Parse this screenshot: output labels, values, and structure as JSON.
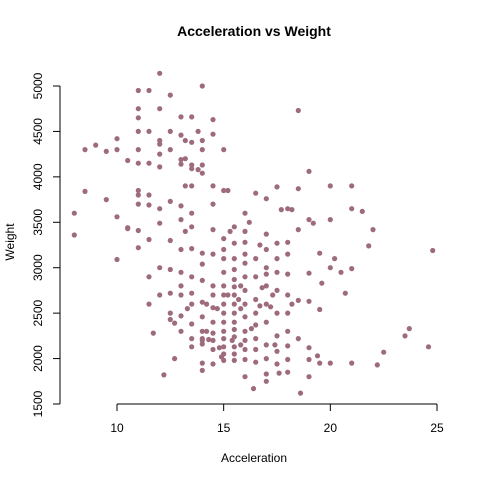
{
  "chart_data": {
    "type": "scatter",
    "title": "Acceleration vs Weight",
    "xlabel": "Acceleration",
    "ylabel": "Weight",
    "xlim": [
      8,
      25
    ],
    "ylim": [
      1500,
      5150
    ],
    "xticks": [
      10,
      15,
      20,
      25
    ],
    "yticks": [
      1500,
      2000,
      2500,
      3000,
      3500,
      4000,
      4500,
      5000
    ],
    "tick_labels_x": [
      "10",
      "15",
      "20",
      "25"
    ],
    "tick_labels_y": [
      "1500",
      "2000",
      "2500",
      "3000",
      "3500",
      "4000",
      "4500",
      "5000"
    ],
    "grid": false,
    "point_color": "#9E6B7E",
    "points": [
      [
        8.0,
        3600
      ],
      [
        8.0,
        3360
      ],
      [
        8.5,
        3840
      ],
      [
        8.5,
        4300
      ],
      [
        9.0,
        4350
      ],
      [
        9.5,
        4280
      ],
      [
        9.5,
        3750
      ],
      [
        10.0,
        4420
      ],
      [
        10.0,
        4300
      ],
      [
        10.0,
        3560
      ],
      [
        10.0,
        3090
      ],
      [
        10.5,
        4180
      ],
      [
        10.5,
        3440
      ],
      [
        10.5,
        3430
      ],
      [
        11.0,
        4950
      ],
      [
        11.0,
        4750
      ],
      [
        11.0,
        4650
      ],
      [
        11.0,
        4500
      ],
      [
        11.0,
        4300
      ],
      [
        11.0,
        4150
      ],
      [
        11.0,
        3850
      ],
      [
        11.0,
        3800
      ],
      [
        11.0,
        3700
      ],
      [
        11.0,
        3410
      ],
      [
        11.0,
        3220
      ],
      [
        11.5,
        4950
      ],
      [
        11.5,
        4500
      ],
      [
        11.5,
        4150
      ],
      [
        11.5,
        3800
      ],
      [
        11.5,
        3690
      ],
      [
        11.5,
        2900
      ],
      [
        11.5,
        2600
      ],
      [
        11.5,
        3310
      ],
      [
        11.7,
        2280
      ],
      [
        12.0,
        5140
      ],
      [
        12.0,
        4750
      ],
      [
        12.0,
        4400
      ],
      [
        12.0,
        4360
      ],
      [
        12.0,
        4250
      ],
      [
        12.0,
        4110
      ],
      [
        12.0,
        3650
      ],
      [
        12.0,
        3490
      ],
      [
        12.0,
        3000
      ],
      [
        12.0,
        2700
      ],
      [
        12.2,
        1820
      ],
      [
        12.5,
        4900
      ],
      [
        12.5,
        4500
      ],
      [
        12.5,
        4300
      ],
      [
        12.5,
        3730
      ],
      [
        12.5,
        3300
      ],
      [
        12.5,
        2980
      ],
      [
        12.5,
        2720
      ],
      [
        12.5,
        2430
      ],
      [
        12.5,
        2500
      ],
      [
        12.7,
        2390
      ],
      [
        12.7,
        2000
      ],
      [
        13.0,
        4660
      ],
      [
        13.0,
        4460
      ],
      [
        13.0,
        4190
      ],
      [
        13.0,
        4140
      ],
      [
        13.0,
        3680
      ],
      [
        13.0,
        3530
      ],
      [
        13.0,
        3200
      ],
      [
        13.0,
        2950
      ],
      [
        13.0,
        2800
      ],
      [
        13.0,
        2700
      ],
      [
        13.0,
        2470
      ],
      [
        13.0,
        2300
      ],
      [
        13.2,
        4400
      ],
      [
        13.2,
        4200
      ],
      [
        13.2,
        3900
      ],
      [
        13.2,
        3400
      ],
      [
        13.3,
        2550
      ],
      [
        13.5,
        4660
      ],
      [
        13.5,
        4380
      ],
      [
        13.5,
        4130
      ],
      [
        13.5,
        4090
      ],
      [
        13.5,
        3900
      ],
      [
        13.5,
        3600
      ],
      [
        13.5,
        3450
      ],
      [
        13.5,
        3210
      ],
      [
        13.5,
        2900
      ],
      [
        13.5,
        2720
      ],
      [
        13.5,
        2600
      ],
      [
        13.5,
        2380
      ],
      [
        13.5,
        2220
      ],
      [
        13.5,
        2130
      ],
      [
        13.8,
        4500
      ],
      [
        13.8,
        4080
      ],
      [
        14.0,
        5000
      ],
      [
        14.0,
        4400
      ],
      [
        14.0,
        4300
      ],
      [
        14.0,
        4130
      ],
      [
        14.0,
        4040
      ],
      [
        14.0,
        3160
      ],
      [
        14.0,
        3040
      ],
      [
        14.0,
        2860
      ],
      [
        14.0,
        2620
      ],
      [
        14.0,
        2460
      ],
      [
        14.0,
        2300
      ],
      [
        14.0,
        2220
      ],
      [
        14.0,
        2200
      ],
      [
        14.0,
        2160
      ],
      [
        14.0,
        1950
      ],
      [
        14.0,
        1870
      ],
      [
        14.2,
        2600
      ],
      [
        14.2,
        2300
      ],
      [
        14.3,
        2210
      ],
      [
        14.5,
        4630
      ],
      [
        14.5,
        4470
      ],
      [
        14.5,
        3900
      ],
      [
        14.5,
        3700
      ],
      [
        14.5,
        3420
      ],
      [
        14.5,
        3150
      ],
      [
        14.5,
        2800
      ],
      [
        14.5,
        2700
      ],
      [
        14.5,
        2560
      ],
      [
        14.5,
        2400
      ],
      [
        14.5,
        2280
      ],
      [
        14.5,
        2200
      ],
      [
        14.5,
        2100
      ],
      [
        14.5,
        1940
      ],
      [
        14.7,
        2550
      ],
      [
        14.8,
        2120
      ],
      [
        14.9,
        2020
      ],
      [
        15.0,
        4300
      ],
      [
        15.0,
        3850
      ],
      [
        15.0,
        3320
      ],
      [
        15.0,
        3200
      ],
      [
        15.0,
        3100
      ],
      [
        15.0,
        2950
      ],
      [
        15.0,
        2800
      ],
      [
        15.0,
        2700
      ],
      [
        15.0,
        2600
      ],
      [
        15.0,
        2500
      ],
      [
        15.0,
        2400
      ],
      [
        15.0,
        2300
      ],
      [
        15.0,
        2220
      ],
      [
        15.0,
        2130
      ],
      [
        15.0,
        2050
      ],
      [
        15.0,
        1980
      ],
      [
        15.2,
        3850
      ],
      [
        15.2,
        2700
      ],
      [
        15.3,
        3400
      ],
      [
        15.4,
        2200
      ],
      [
        15.5,
        3450
      ],
      [
        15.5,
        3270
      ],
      [
        15.5,
        3100
      ],
      [
        15.5,
        2980
      ],
      [
        15.5,
        2870
      ],
      [
        15.5,
        2790
      ],
      [
        15.5,
        2700
      ],
      [
        15.5,
        2600
      ],
      [
        15.5,
        2500
      ],
      [
        15.5,
        2400
      ],
      [
        15.5,
        2320
      ],
      [
        15.5,
        2240
      ],
      [
        15.5,
        2130
      ],
      [
        15.5,
        2050
      ],
      [
        15.5,
        1980
      ],
      [
        15.7,
        2650
      ],
      [
        15.8,
        2800
      ],
      [
        15.8,
        2550
      ],
      [
        15.8,
        2150
      ],
      [
        16.0,
        3600
      ],
      [
        16.0,
        3400
      ],
      [
        16.0,
        3280
      ],
      [
        16.0,
        3150
      ],
      [
        16.0,
        3050
      ],
      [
        16.0,
        2900
      ],
      [
        16.0,
        2750
      ],
      [
        16.0,
        2600
      ],
      [
        16.0,
        2460
      ],
      [
        16.0,
        2300
      ],
      [
        16.0,
        2200
      ],
      [
        16.0,
        2100
      ],
      [
        16.0,
        1990
      ],
      [
        16.0,
        1800
      ],
      [
        16.2,
        3500
      ],
      [
        16.3,
        2330
      ],
      [
        16.4,
        1670
      ],
      [
        16.5,
        3820
      ],
      [
        16.5,
        3100
      ],
      [
        16.5,
        2900
      ],
      [
        16.5,
        2650
      ],
      [
        16.5,
        2500
      ],
      [
        16.5,
        2370
      ],
      [
        16.5,
        2220
      ],
      [
        16.5,
        2100
      ],
      [
        16.5,
        1960
      ],
      [
        16.7,
        3250
      ],
      [
        16.7,
        2580
      ],
      [
        16.8,
        2780
      ],
      [
        17.0,
        3760
      ],
      [
        17.0,
        3370
      ],
      [
        17.0,
        3200
      ],
      [
        17.0,
        3000
      ],
      [
        17.0,
        2930
      ],
      [
        17.0,
        2800
      ],
      [
        17.0,
        2600
      ],
      [
        17.0,
        2400
      ],
      [
        17.0,
        2150
      ],
      [
        17.0,
        2000
      ],
      [
        17.0,
        1830
      ],
      [
        17.0,
        1750
      ],
      [
        17.2,
        2570
      ],
      [
        17.3,
        2700
      ],
      [
        17.4,
        2150
      ],
      [
        17.5,
        3890
      ],
      [
        17.5,
        3270
      ],
      [
        17.5,
        3100
      ],
      [
        17.5,
        2950
      ],
      [
        17.5,
        2750
      ],
      [
        17.5,
        2500
      ],
      [
        17.5,
        2250
      ],
      [
        17.5,
        2080
      ],
      [
        17.5,
        1940
      ],
      [
        17.6,
        1840
      ],
      [
        17.7,
        3640
      ],
      [
        18.0,
        3650
      ],
      [
        18.0,
        3280
      ],
      [
        18.0,
        3150
      ],
      [
        18.0,
        2930
      ],
      [
        18.0,
        2700
      ],
      [
        18.0,
        2500
      ],
      [
        18.0,
        2300
      ],
      [
        18.0,
        2140
      ],
      [
        18.0,
        1990
      ],
      [
        18.0,
        1850
      ],
      [
        18.2,
        3640
      ],
      [
        18.2,
        2600
      ],
      [
        18.5,
        4730
      ],
      [
        18.5,
        3870
      ],
      [
        18.5,
        3420
      ],
      [
        18.5,
        2640
      ],
      [
        18.5,
        2220
      ],
      [
        18.6,
        1620
      ],
      [
        19.0,
        4060
      ],
      [
        19.0,
        3530
      ],
      [
        19.0,
        2940
      ],
      [
        19.0,
        2630
      ],
      [
        19.0,
        2120
      ],
      [
        19.0,
        1990
      ],
      [
        19.0,
        1800
      ],
      [
        19.2,
        3490
      ],
      [
        19.4,
        2030
      ],
      [
        19.5,
        3160
      ],
      [
        19.5,
        2540
      ],
      [
        19.5,
        1950
      ],
      [
        19.6,
        2830
      ],
      [
        20.0,
        3900
      ],
      [
        20.0,
        3530
      ],
      [
        20.0,
        3000
      ],
      [
        20.0,
        1950
      ],
      [
        20.2,
        3100
      ],
      [
        20.5,
        2950
      ],
      [
        20.7,
        2720
      ],
      [
        21.0,
        3900
      ],
      [
        21.0,
        3650
      ],
      [
        21.0,
        2990
      ],
      [
        21.0,
        1950
      ],
      [
        21.5,
        3620
      ],
      [
        21.8,
        3240
      ],
      [
        22.0,
        3420
      ],
      [
        22.5,
        2070
      ],
      [
        22.2,
        1930
      ],
      [
        23.5,
        2250
      ],
      [
        23.7,
        2330
      ],
      [
        24.6,
        2130
      ],
      [
        24.8,
        3190
      ]
    ]
  }
}
